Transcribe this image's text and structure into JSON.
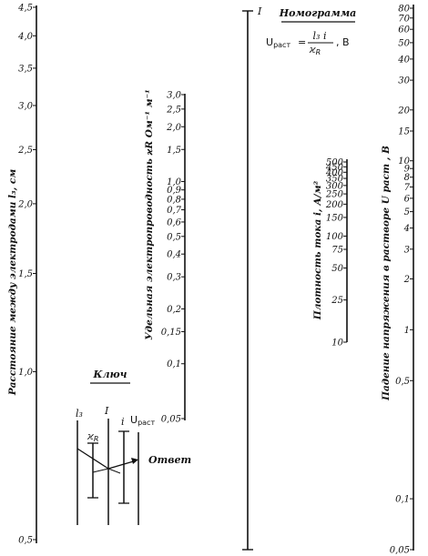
{
  "nomogram": {
    "title": "Номограмма",
    "formula": {
      "lhs_main": "U",
      "lhs_sub": "раст",
      "equals": "=",
      "numerator": "l₃ i",
      "denominator": "ϰ",
      "denominator_sub": "R",
      "unit": ", В"
    },
    "top_mark": "I"
  },
  "scales": {
    "l3": {
      "title": "Расстояние между электродами  l₃, см",
      "ticks": [
        "4,5",
        "4,0",
        "3,5",
        "3,0",
        "2,5",
        "2,0",
        "1,5",
        "1,0",
        "0,5"
      ]
    },
    "kappa": {
      "title": "Удельная электропроводность  ϰR Ом⁻¹ м⁻¹",
      "ticks": [
        "3,0",
        "2,5",
        "2,0",
        "1,5",
        "1,0",
        "0,9",
        "0,8",
        "0,7",
        "0,6",
        "0,5",
        "0,4",
        "0,3",
        "0,2",
        "0,15",
        "0,1",
        "0,05"
      ]
    },
    "density": {
      "title": "Плотность тока  i, А/м²",
      "ticks": [
        "500",
        "450",
        "400",
        "350",
        "300",
        "250",
        "200",
        "150",
        "100",
        "75",
        "50",
        "25",
        "10"
      ]
    },
    "voltage": {
      "title": "Падение напряжения в растворе  U раст , В",
      "ticks": [
        "80",
        "70",
        "60",
        "50",
        "40",
        "30",
        "20",
        "15",
        "10",
        "9",
        "8",
        "7",
        "6",
        "5",
        "4",
        "3",
        "2",
        "1",
        "0,5",
        "0,1",
        "0,05"
      ]
    }
  },
  "key": {
    "title": "Ключ",
    "labels": {
      "l3": "l₃",
      "kappa": "ϰ",
      "kappa_sub": "R",
      "I": "I",
      "i": "i",
      "u": "U",
      "u_sub": "раст"
    },
    "answer": "Ответ"
  }
}
